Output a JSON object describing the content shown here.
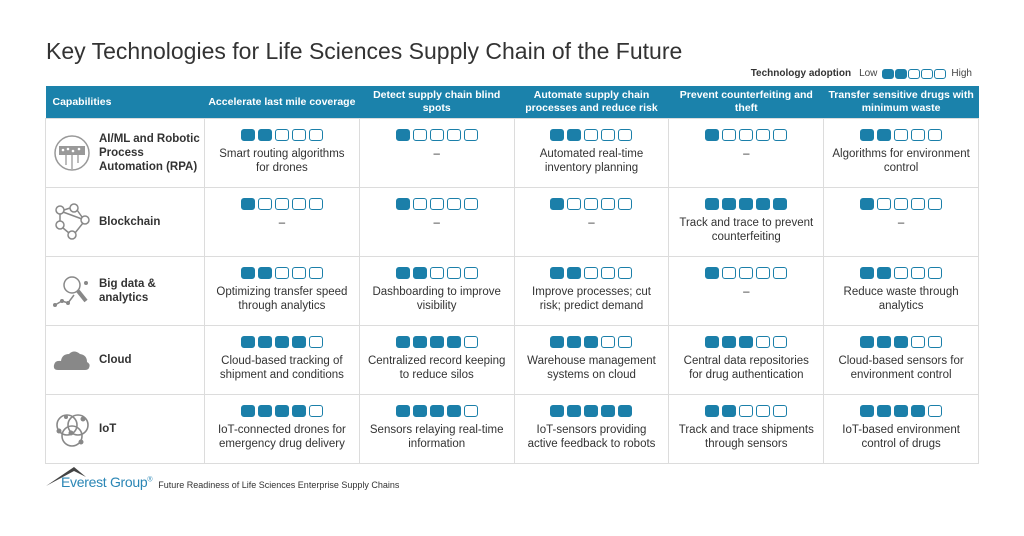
{
  "title": "Key Technologies for Life Sciences Supply Chain of the Future",
  "legend": {
    "label": "Technology adoption",
    "low": "Low",
    "high": "High",
    "example_level": 2,
    "max_level": 5
  },
  "colors": {
    "accent": "#1b7fa9",
    "header": "#1b82ab"
  },
  "table": {
    "corner_header": "Capabilities",
    "columns": [
      "Accelerate last mile coverage",
      "Detect supply chain blind spots",
      "Automate supply chain processes and reduce risk",
      "Prevent counterfeiting and theft",
      "Transfer sensitive drugs with minimum waste"
    ],
    "rows": [
      {
        "technology": "AI/ML and Robotic Process Automation (RPA)",
        "icon": "circuit-head-icon",
        "cells": [
          {
            "level": 2,
            "text": "Smart routing algorithms for drones"
          },
          {
            "level": 1,
            "text": "–"
          },
          {
            "level": 2,
            "text": "Automated real-time inventory planning"
          },
          {
            "level": 1,
            "text": "–"
          },
          {
            "level": 2,
            "text": "Algorithms for environment control"
          }
        ]
      },
      {
        "technology": "Blockchain",
        "icon": "blockchain-network-icon",
        "cells": [
          {
            "level": 1,
            "text": "–"
          },
          {
            "level": 1,
            "text": "–"
          },
          {
            "level": 1,
            "text": "–"
          },
          {
            "level": 5,
            "text": "Track and trace to prevent counterfeiting"
          },
          {
            "level": 1,
            "text": "–"
          }
        ]
      },
      {
        "technology": "Big data & analytics",
        "icon": "magnifier-analytics-icon",
        "cells": [
          {
            "level": 2,
            "text": "Optimizing transfer speed through analytics"
          },
          {
            "level": 2,
            "text": "Dashboarding to improve visibility"
          },
          {
            "level": 2,
            "text": "Improve processes; cut risk; predict demand"
          },
          {
            "level": 1,
            "text": "–"
          },
          {
            "level": 2,
            "text": "Reduce waste through analytics"
          }
        ]
      },
      {
        "technology": "Cloud",
        "icon": "cloud-icon",
        "cells": [
          {
            "level": 4,
            "text": "Cloud-based tracking of shipment and conditions"
          },
          {
            "level": 4,
            "text": "Centralized record keeping to reduce silos"
          },
          {
            "level": 3,
            "text": "Warehouse management systems on cloud"
          },
          {
            "level": 3,
            "text": "Central data repositories for drug authentication"
          },
          {
            "level": 3,
            "text": "Cloud-based sensors for environment control"
          }
        ]
      },
      {
        "technology": "IoT",
        "icon": "iot-network-icon",
        "cells": [
          {
            "level": 4,
            "text": "IoT-connected drones for emergency drug delivery"
          },
          {
            "level": 4,
            "text": "Sensors relaying real-time information"
          },
          {
            "level": 5,
            "text": "IoT-sensors providing active feedback to robots"
          },
          {
            "level": 2,
            "text": "Track and trace shipments through sensors"
          },
          {
            "level": 4,
            "text": "IoT-based environment control of drugs"
          }
        ]
      }
    ]
  },
  "footer": {
    "logo": "Everest Group",
    "logo_mark": "®",
    "source": "Future Readiness of Life Sciences Enterprise Supply Chains"
  }
}
